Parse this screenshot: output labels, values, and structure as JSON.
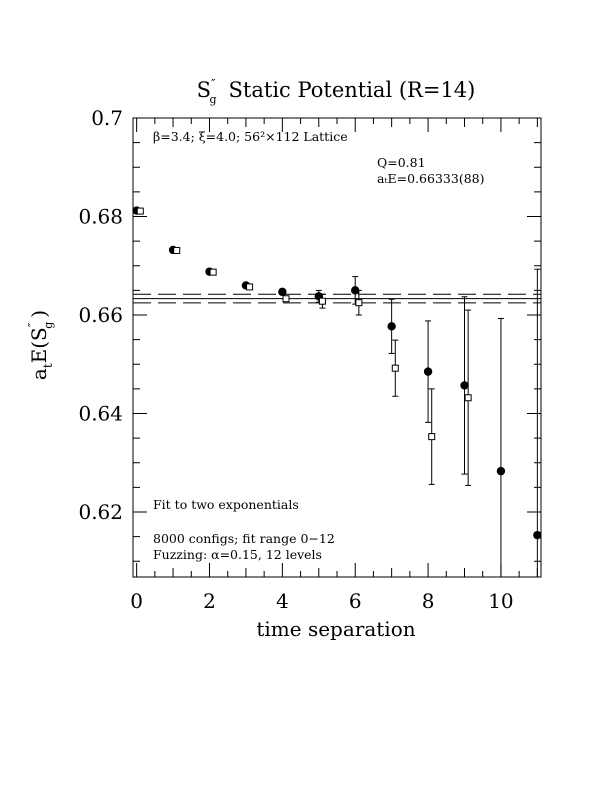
{
  "chart_data": {
    "type": "scatter",
    "title": "S″g Static Potential (R=14)",
    "title_parts": {
      "main": "S",
      "sup": "″",
      "sub": "g",
      "rest": "Static Potential (R=14)"
    },
    "xlabel": "time separation",
    "ylabel": "a_tE(S″g)",
    "ylabel_parts": {
      "a": "a",
      "a_sub": "t",
      "mid": "E(S",
      "sup": "″",
      "sub": "g",
      "end": ")"
    },
    "xlim": [
      -0.1,
      11.1
    ],
    "ylim": [
      0.6068,
      0.7
    ],
    "x_ticks": [
      0,
      2,
      4,
      6,
      8,
      10
    ],
    "y_ticks": [
      0.62,
      0.64,
      0.66,
      0.68,
      0.7
    ],
    "x_tick_labels": [
      "0",
      "2",
      "4",
      "6",
      "8",
      "10"
    ],
    "y_tick_labels": [
      "0.62",
      "0.64",
      "0.66",
      "0.68",
      "0.7"
    ],
    "grid": false,
    "annotations": {
      "lattice": "β=3.4; ξ=4.0; 56²×112 Lattice",
      "q_value": "Q=0.81",
      "energy_fit": "aₜE=0.66333(88)",
      "fit_note": "Fit to two exponentials",
      "configs": "8000 configs; fit range 0−12",
      "fuzzing": "Fuzzing: α=0.15, 12 levels"
    },
    "fit": {
      "value": 0.66333,
      "error": 0.00088,
      "x_range": [
        -0.1,
        11.1
      ]
    },
    "series": [
      {
        "marker": "filled-circle",
        "points": [
          {
            "x": 0,
            "y": 0.6812,
            "err": 0.0003
          },
          {
            "x": 1,
            "y": 0.6732,
            "err": 0.0003
          },
          {
            "x": 2,
            "y": 0.6688,
            "err": 0.0004
          },
          {
            "x": 3,
            "y": 0.666,
            "err": 0.0004
          },
          {
            "x": 4,
            "y": 0.6647,
            "err": 0.0005
          },
          {
            "x": 5,
            "y": 0.6638,
            "err": 0.0012
          },
          {
            "x": 6,
            "y": 0.665,
            "err": 0.0028
          },
          {
            "x": 7,
            "y": 0.6577,
            "err": 0.0055
          },
          {
            "x": 8,
            "y": 0.6485,
            "err": 0.0103
          },
          {
            "x": 9,
            "y": 0.6457,
            "err": 0.018
          },
          {
            "x": 10,
            "y": 0.6283,
            "err": 0.031
          },
          {
            "x": 11,
            "y": 0.6153,
            "err": 0.054
          }
        ]
      },
      {
        "marker": "open-square",
        "points": [
          {
            "x": 0.1,
            "y": 0.6811,
            "err": 0.0003
          },
          {
            "x": 1.1,
            "y": 0.6731,
            "err": 0.0003
          },
          {
            "x": 2.1,
            "y": 0.6687,
            "err": 0.0004
          },
          {
            "x": 3.1,
            "y": 0.6657,
            "err": 0.0004
          },
          {
            "x": 4.1,
            "y": 0.6633,
            "err": 0.0005
          },
          {
            "x": 5.1,
            "y": 0.6628,
            "err": 0.0014
          },
          {
            "x": 6.1,
            "y": 0.6625,
            "err": 0.0025
          },
          {
            "x": 7.1,
            "y": 0.6492,
            "err": 0.0057
          },
          {
            "x": 8.1,
            "y": 0.6353,
            "err": 0.0097
          },
          {
            "x": 9.1,
            "y": 0.6432,
            "err": 0.0178
          }
        ]
      }
    ]
  }
}
